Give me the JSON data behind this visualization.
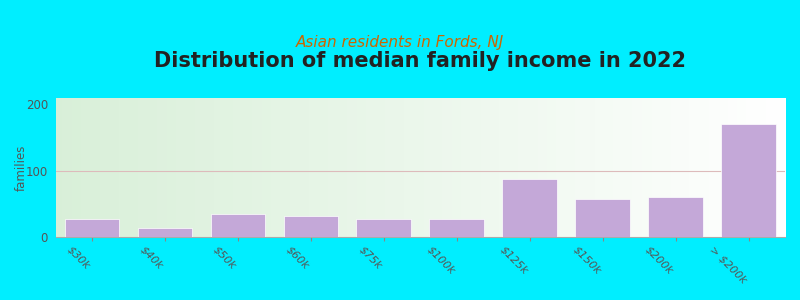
{
  "title": "Distribution of median family income in 2022",
  "subtitle": "Asian residents in Fords, NJ",
  "categories": [
    "$30k",
    "$40k",
    "$50k",
    "$60k",
    "$75k",
    "$100k",
    "$125k",
    "$150k",
    "$200k",
    "> $200k"
  ],
  "values": [
    27,
    14,
    35,
    32,
    27,
    27,
    88,
    58,
    60,
    170
  ],
  "bar_color": "#c4a8d8",
  "ylabel": "families",
  "ylim": [
    0,
    210
  ],
  "yticks": [
    0,
    100,
    200
  ],
  "background_color": "#00eeff",
  "plot_bg_top": "#f5faf0",
  "plot_bg_bottom": "#dff0e0",
  "title_fontsize": 15,
  "subtitle_fontsize": 11,
  "subtitle_color": "#cc6600",
  "hline_color": "#ddbbbb",
  "tick_label_rotation": -45
}
